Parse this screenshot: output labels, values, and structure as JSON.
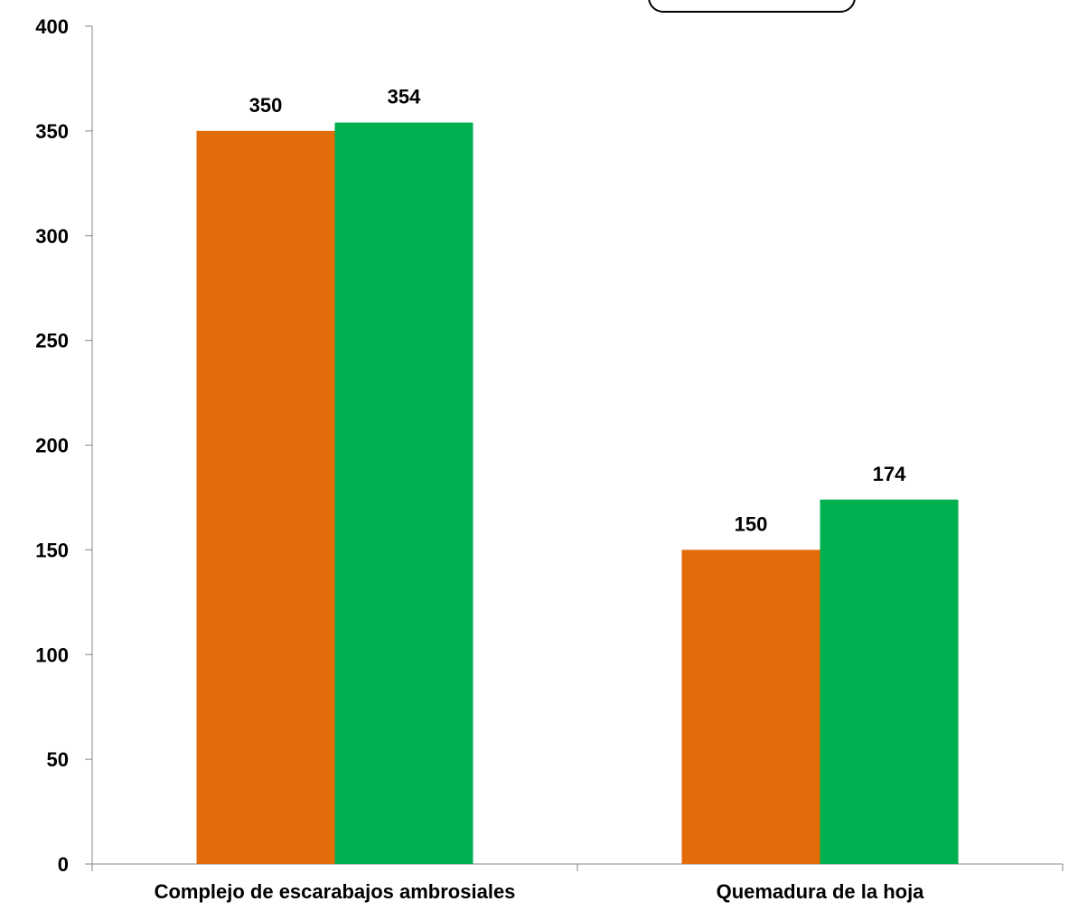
{
  "chart_data": {
    "type": "bar",
    "categories": [
      "Complejo de escarabajos ambrosiales",
      "Quemadura de la hoja"
    ],
    "series": [
      {
        "values": [
          350,
          150
        ],
        "color": "#E36C0A"
      },
      {
        "values": [
          354,
          174
        ],
        "color": "#00B050"
      }
    ],
    "ylim": [
      0,
      400
    ],
    "yticks": [
      0,
      50,
      100,
      150,
      200,
      250,
      300,
      350,
      400
    ],
    "data_labels": true,
    "grid": false,
    "legend": "top-center (cropped)"
  }
}
